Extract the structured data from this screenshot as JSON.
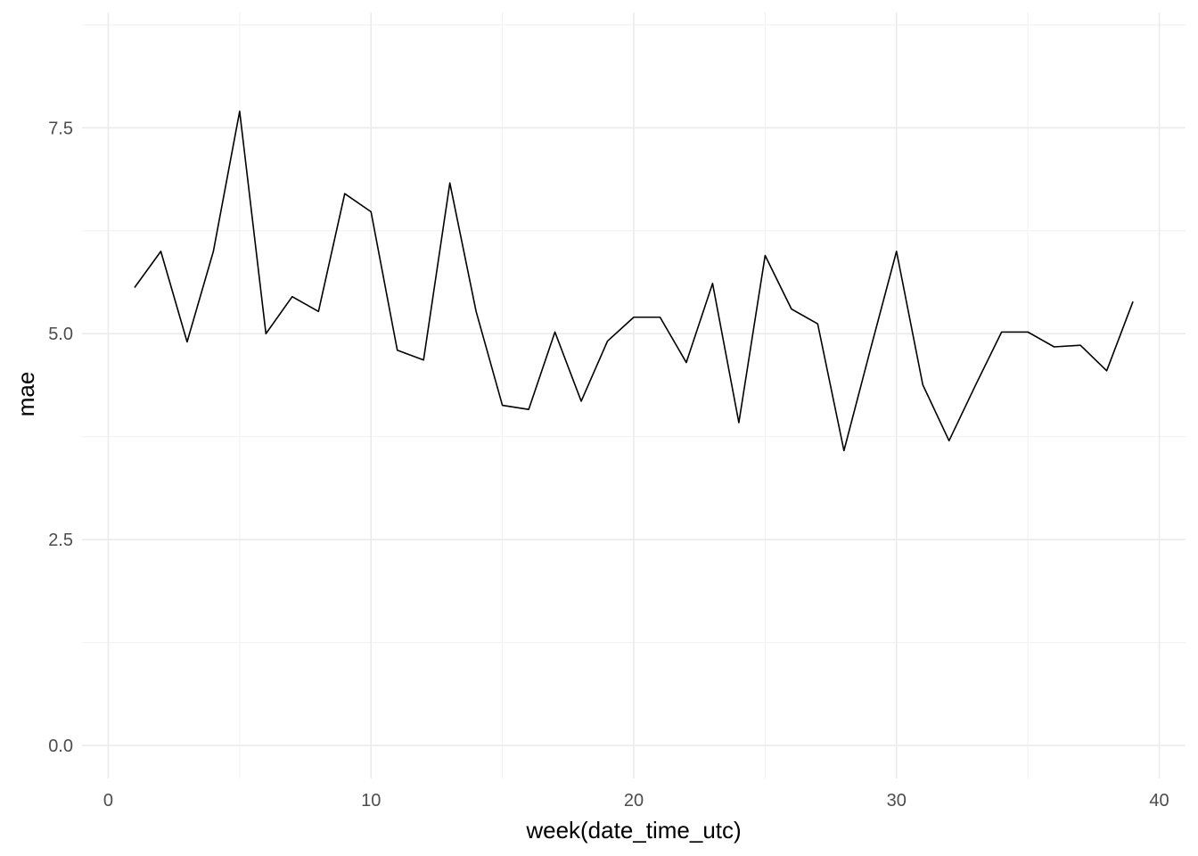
{
  "chart_data": {
    "type": "line",
    "xlabel": "week(date_time_utc)",
    "ylabel": "mae",
    "xlim": [
      -1,
      41
    ],
    "ylim": [
      -0.4,
      8.9
    ],
    "x_ticks": [
      0,
      10,
      20,
      30,
      40
    ],
    "x_tick_labels": [
      "0",
      "10",
      "20",
      "30",
      "40"
    ],
    "x_minor": [
      5,
      15,
      25,
      35
    ],
    "y_ticks": [
      0,
      2.5,
      5,
      7.5
    ],
    "y_tick_labels": [
      "0.0",
      "2.5",
      "5.0",
      "7.5"
    ],
    "y_minor": [
      1.25,
      3.75,
      6.25,
      8.75
    ],
    "grid": true,
    "line_color": "#000000",
    "grid_color": "#ebebeb",
    "series": [
      {
        "x": [
          1,
          2,
          3,
          4,
          5,
          6,
          7,
          8,
          9,
          10,
          11,
          12,
          13,
          14,
          15,
          16,
          17,
          18,
          19,
          20,
          21,
          22,
          23,
          24,
          25,
          26,
          27,
          28,
          29,
          30,
          31,
          32,
          33,
          34,
          35,
          36,
          37,
          38,
          39
        ],
        "values": [
          5.56,
          6.0,
          4.9,
          6.0,
          7.7,
          5.0,
          5.45,
          5.27,
          6.7,
          6.48,
          4.8,
          4.68,
          6.83,
          5.27,
          4.13,
          4.08,
          5.02,
          4.18,
          4.91,
          5.2,
          5.2,
          4.65,
          5.61,
          3.92,
          5.95,
          5.3,
          5.12,
          3.58,
          4.8,
          6.0,
          4.38,
          3.7,
          4.37,
          5.02,
          5.02,
          4.84,
          4.86,
          4.55,
          5.39
        ]
      }
    ]
  }
}
